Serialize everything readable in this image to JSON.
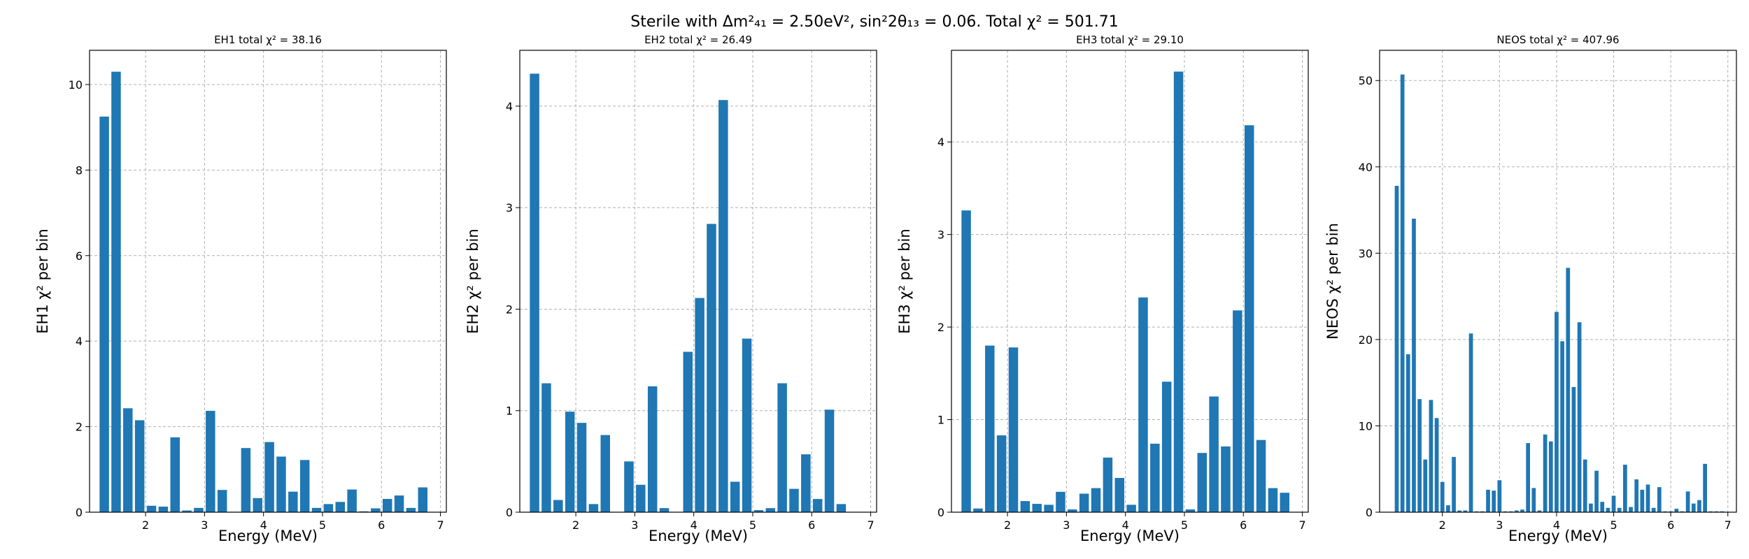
{
  "figure": {
    "suptitle": "Sterile with Δm²₄₁ = 2.50eV², sin²2θ₁₃ = 0.06. Total χ² = 501.71"
  },
  "chart_data": [
    {
      "type": "bar",
      "title": "EH1 total χ² = 38.16",
      "xlabel": "Energy (MeV)",
      "ylabel": "EH1 χ² per bin",
      "xlim": [
        1.05,
        7.1
      ],
      "ylim": [
        0,
        10.8
      ],
      "xticks": [
        2,
        3,
        4,
        5,
        6,
        7
      ],
      "yticks": [
        0,
        2,
        4,
        6,
        8,
        10
      ],
      "grid": true,
      "bar_width": 0.16,
      "color": "#1f77b4",
      "x": [
        1.3,
        1.5,
        1.7,
        1.9,
        2.1,
        2.3,
        2.5,
        2.7,
        2.9,
        3.1,
        3.3,
        3.5,
        3.7,
        3.9,
        4.1,
        4.3,
        4.5,
        4.7,
        4.9,
        5.1,
        5.3,
        5.5,
        5.7,
        5.9,
        6.1,
        6.3,
        6.5,
        6.7
      ],
      "values": [
        9.25,
        10.3,
        2.43,
        2.15,
        0.15,
        0.13,
        1.75,
        0.04,
        0.1,
        2.37,
        0.52,
        0.01,
        1.5,
        0.33,
        1.64,
        1.3,
        0.48,
        1.22,
        0.1,
        0.19,
        0.24,
        0.53,
        0.02,
        0.09,
        0.31,
        0.39,
        0.1,
        0.58
      ]
    },
    {
      "type": "bar",
      "title": "EH2 total χ² = 26.49",
      "xlabel": "Energy (MeV)",
      "ylabel": "EH2 χ² per bin",
      "xlim": [
        1.05,
        7.1
      ],
      "ylim": [
        0,
        4.55
      ],
      "xticks": [
        2,
        3,
        4,
        5,
        6,
        7
      ],
      "yticks": [
        0,
        1,
        2,
        3,
        4
      ],
      "grid": true,
      "bar_width": 0.16,
      "color": "#1f77b4",
      "x": [
        1.3,
        1.5,
        1.7,
        1.9,
        2.1,
        2.3,
        2.5,
        2.7,
        2.9,
        3.1,
        3.3,
        3.5,
        3.7,
        3.9,
        4.1,
        4.3,
        4.5,
        4.7,
        4.9,
        5.1,
        5.3,
        5.5,
        5.7,
        5.9,
        6.1,
        6.3,
        6.5,
        6.7
      ],
      "values": [
        4.32,
        1.27,
        0.12,
        0.99,
        0.88,
        0.08,
        0.76,
        0.0,
        0.5,
        0.27,
        1.24,
        0.04,
        0.0,
        1.58,
        2.11,
        2.84,
        4.06,
        0.3,
        1.71,
        0.02,
        0.04,
        1.27,
        0.23,
        0.57,
        0.13,
        1.01,
        0.08,
        0.0
      ]
    },
    {
      "type": "bar",
      "title": "EH3 total χ² = 29.10",
      "xlabel": "Energy (MeV)",
      "ylabel": "EH3 χ² per bin",
      "xlim": [
        1.05,
        7.1
      ],
      "ylim": [
        0,
        4.99
      ],
      "xticks": [
        2,
        3,
        4,
        5,
        6,
        7
      ],
      "yticks": [
        0,
        1,
        2,
        3,
        4
      ],
      "grid": true,
      "bar_width": 0.16,
      "color": "#1f77b4",
      "x": [
        1.3,
        1.5,
        1.7,
        1.9,
        2.1,
        2.3,
        2.5,
        2.7,
        2.9,
        3.1,
        3.3,
        3.5,
        3.7,
        3.9,
        4.1,
        4.3,
        4.5,
        4.7,
        4.9,
        5.1,
        5.3,
        5.5,
        5.7,
        5.9,
        6.1,
        6.3,
        6.5,
        6.7
      ],
      "values": [
        3.26,
        0.04,
        1.8,
        0.83,
        1.78,
        0.12,
        0.09,
        0.08,
        0.22,
        0.03,
        0.2,
        0.26,
        0.59,
        0.37,
        0.08,
        2.32,
        0.74,
        1.41,
        4.76,
        0.03,
        0.64,
        1.25,
        0.71,
        2.18,
        4.18,
        0.78,
        0.26,
        0.21
      ]
    },
    {
      "type": "bar",
      "title": "NEOS total χ² = 407.96",
      "xlabel": "Energy (MeV)",
      "ylabel": "NEOS χ² per bin",
      "xlim": [
        0.9,
        7.15
      ],
      "ylim": [
        0,
        53.5
      ],
      "xticks": [
        2,
        3,
        4,
        5,
        6,
        7
      ],
      "yticks": [
        0,
        10,
        20,
        30,
        40,
        50
      ],
      "grid": true,
      "bar_width": 0.07,
      "color": "#1f77b4",
      "x": [
        1.2,
        1.3,
        1.4,
        1.5,
        1.6,
        1.7,
        1.8,
        1.9,
        2.0,
        2.1,
        2.2,
        2.3,
        2.4,
        2.5,
        2.6,
        2.7,
        2.8,
        2.9,
        3.0,
        3.1,
        3.2,
        3.3,
        3.4,
        3.5,
        3.6,
        3.7,
        3.8,
        3.9,
        4.0,
        4.1,
        4.2,
        4.3,
        4.4,
        4.5,
        4.6,
        4.7,
        4.8,
        4.9,
        5.0,
        5.1,
        5.2,
        5.3,
        5.4,
        5.5,
        5.6,
        5.7,
        5.8,
        5.9,
        6.0,
        6.1,
        6.2,
        6.3,
        6.4,
        6.5,
        6.6,
        6.7,
        6.8,
        6.9
      ],
      "values": [
        37.8,
        50.7,
        18.3,
        34.0,
        13.1,
        6.1,
        13.0,
        10.9,
        3.5,
        0.8,
        6.4,
        0.2,
        0.2,
        20.7,
        0.1,
        0.1,
        2.6,
        2.5,
        3.7,
        0.1,
        0.1,
        0.2,
        0.3,
        8.0,
        2.8,
        0.2,
        9.0,
        8.2,
        23.2,
        19.8,
        28.3,
        14.5,
        22.0,
        6.1,
        1.0,
        4.8,
        1.2,
        0.5,
        1.9,
        0.5,
        5.5,
        0.6,
        3.8,
        2.6,
        3.2,
        0.5,
        2.9,
        0.1,
        0.1,
        0.4,
        0.1,
        2.4,
        1.0,
        1.4,
        5.6,
        0.1,
        0.1,
        0.1
      ]
    }
  ]
}
